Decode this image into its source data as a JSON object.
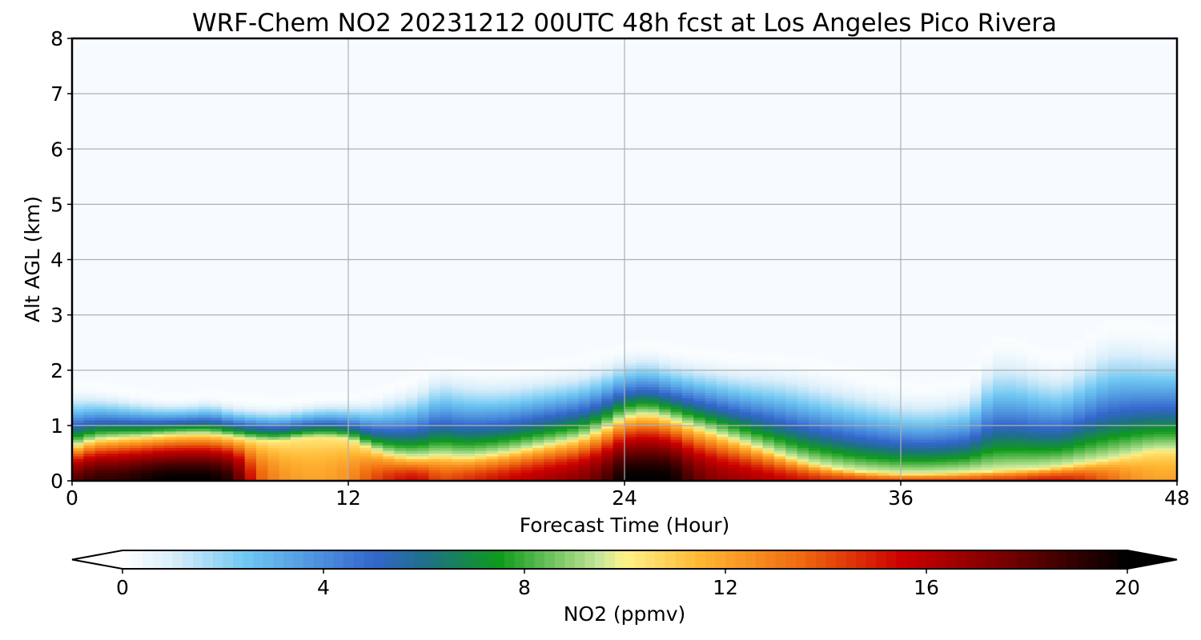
{
  "chart_data": {
    "type": "heatmap",
    "title": "WRF-Chem NO2  20231212 00UTC 48h fcst at Los Angeles Pico Rivera",
    "xlabel": "Forecast Time (Hour)",
    "ylabel": "Alt AGL (km)",
    "xlim": [
      0,
      48
    ],
    "ylim": [
      0,
      8
    ],
    "xticks": [
      0,
      12,
      24,
      36,
      48
    ],
    "yticks": [
      0,
      1,
      2,
      3,
      4,
      5,
      6,
      7,
      8
    ],
    "grid": true,
    "colorbar": {
      "label": "NO2  (ppmv)",
      "min": 0,
      "max": 20,
      "ticks": [
        0,
        4,
        8,
        12,
        16,
        20
      ],
      "extend": "both",
      "orientation": "horizontal",
      "stops": [
        {
          "v": 0,
          "c": "#ffffff"
        },
        {
          "v": 1,
          "c": "#d9eefa"
        },
        {
          "v": 2.5,
          "c": "#6ec6f2"
        },
        {
          "v": 5,
          "c": "#3366cc"
        },
        {
          "v": 6,
          "c": "#1f6f8b"
        },
        {
          "v": 7.5,
          "c": "#0f9a1c"
        },
        {
          "v": 9.5,
          "c": "#c6e89a"
        },
        {
          "v": 10,
          "c": "#fff38a"
        },
        {
          "v": 11.5,
          "c": "#ffb733"
        },
        {
          "v": 13.5,
          "c": "#ef6a10"
        },
        {
          "v": 15.5,
          "c": "#cc0000"
        },
        {
          "v": 17.5,
          "c": "#7a0000"
        },
        {
          "v": 20,
          "c": "#000000"
        }
      ]
    },
    "profile": {
      "hours": [
        0,
        1,
        2,
        3,
        4,
        5,
        6,
        7,
        8,
        9,
        10,
        11,
        12,
        13,
        14,
        15,
        16,
        17,
        18,
        19,
        20,
        21,
        22,
        23,
        24,
        25,
        26,
        27,
        28,
        29,
        30,
        31,
        32,
        33,
        34,
        35,
        36,
        37,
        38,
        39,
        40,
        41,
        42,
        43,
        44,
        45,
        46,
        47,
        48
      ],
      "surface_no2": [
        18,
        19,
        19,
        19.5,
        20,
        20,
        20,
        19,
        14,
        12.5,
        12,
        12,
        12.5,
        14,
        15,
        15.5,
        14,
        14.5,
        15,
        15.5,
        16,
        16.5,
        17,
        18,
        20,
        20,
        20,
        18,
        17,
        16.5,
        16,
        15.5,
        15,
        14.5,
        14.5,
        14,
        14,
        14,
        14,
        14,
        14.5,
        14.5,
        15,
        15,
        14.5,
        13.5,
        12.5,
        12,
        12
      ],
      "mixing_depth_km": [
        0.62,
        0.75,
        0.78,
        0.8,
        0.83,
        0.85,
        0.85,
        0.8,
        0.74,
        0.72,
        0.78,
        0.8,
        0.76,
        0.58,
        0.46,
        0.42,
        0.46,
        0.42,
        0.46,
        0.52,
        0.6,
        0.68,
        0.76,
        0.92,
        1.15,
        1.22,
        1.12,
        0.98,
        0.85,
        0.72,
        0.58,
        0.44,
        0.32,
        0.24,
        0.18,
        0.15,
        0.13,
        0.13,
        0.14,
        0.16,
        0.18,
        0.2,
        0.22,
        0.26,
        0.32,
        0.38,
        0.46,
        0.55,
        0.55
      ],
      "haze_top_km": [
        1.7,
        1.68,
        1.62,
        1.55,
        1.5,
        1.5,
        1.55,
        1.45,
        1.42,
        1.4,
        1.45,
        1.5,
        1.5,
        1.55,
        1.7,
        1.85,
        2.15,
        2.05,
        2.0,
        2.0,
        2.05,
        2.1,
        2.15,
        2.25,
        2.4,
        2.45,
        2.35,
        2.3,
        2.25,
        2.2,
        2.2,
        2.18,
        2.1,
        2.0,
        1.9,
        1.8,
        1.7,
        1.65,
        1.7,
        1.8,
        2.5,
        2.5,
        2.3,
        2.2,
        2.5,
        2.8,
        2.8,
        2.7,
        2.7
      ]
    }
  }
}
